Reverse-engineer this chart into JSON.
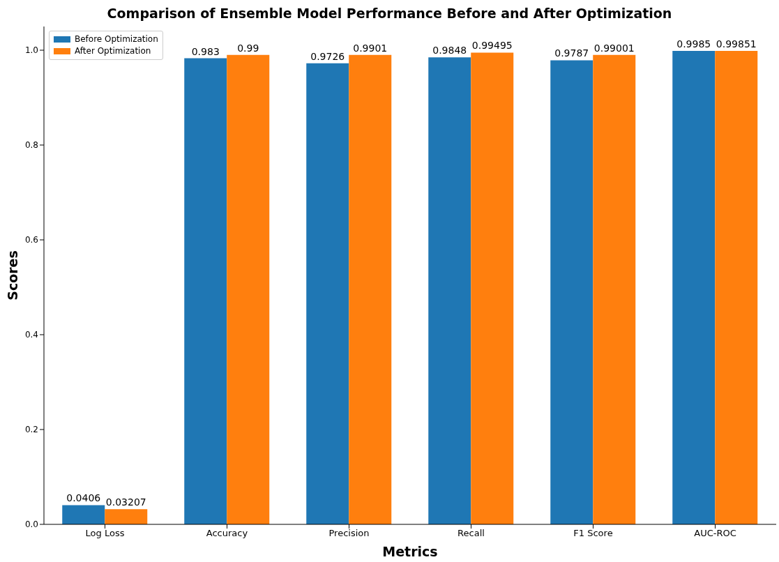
{
  "chart_data": {
    "type": "bar",
    "title": "Comparison of Ensemble Model Performance Before and After Optimization",
    "xlabel": "Metrics",
    "ylabel": "Scores",
    "categories": [
      "Log Loss",
      "Accuracy",
      "Precision",
      "Recall",
      "F1 Score",
      "AUC-ROC"
    ],
    "series": [
      {
        "name": "Before Optimization",
        "color": "#1f77b4",
        "values": [
          0.0406,
          0.983,
          0.9726,
          0.9848,
          0.9787,
          0.9985
        ]
      },
      {
        "name": "After Optimization",
        "color": "#ff7f0e",
        "values": [
          0.03207,
          0.99,
          0.9901,
          0.99495,
          0.99001,
          0.99851
        ]
      }
    ],
    "ylim": [
      0,
      1.05
    ],
    "yticks": [
      {
        "value": 0,
        "label": "0.0"
      },
      {
        "value": 0.2,
        "label": "0.2"
      },
      {
        "value": 0.4,
        "label": "0.4"
      },
      {
        "value": 0.6,
        "label": "0.6"
      },
      {
        "value": 0.8,
        "label": "0.8"
      },
      {
        "value": 1,
        "label": "1.0"
      }
    ],
    "data_labels": true,
    "grid": false,
    "legend": "top left"
  }
}
